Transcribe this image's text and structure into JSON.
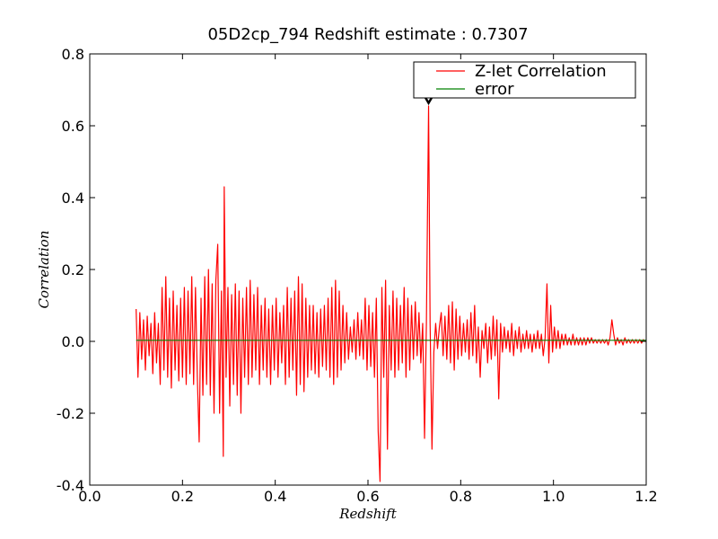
{
  "chart_data": {
    "type": "line",
    "title": "05D2cp_794 Redshift estimate : 0.7307",
    "xlabel": "Redshift",
    "ylabel": "Correlation",
    "xlim": [
      0.0,
      1.2
    ],
    "ylim": [
      -0.4,
      0.8
    ],
    "xticks": [
      "0.0",
      "0.2",
      "0.4",
      "0.6",
      "0.8",
      "1.0",
      "1.2"
    ],
    "yticks": [
      "-0.4",
      "-0.2",
      "0.0",
      "0.2",
      "0.4",
      "0.6",
      "0.8"
    ],
    "legend_position": "top-right",
    "series": [
      {
        "name": "Z-let Correlation",
        "color": "#ff0000",
        "points": [
          [
            0.1,
            0.09
          ],
          [
            0.104,
            -0.1
          ],
          [
            0.108,
            0.08
          ],
          [
            0.112,
            -0.05
          ],
          [
            0.116,
            0.06
          ],
          [
            0.12,
            -0.08
          ],
          [
            0.124,
            0.07
          ],
          [
            0.128,
            -0.04
          ],
          [
            0.132,
            0.05
          ],
          [
            0.136,
            -0.09
          ],
          [
            0.14,
            0.08
          ],
          [
            0.144,
            -0.06
          ],
          [
            0.148,
            0.05
          ],
          [
            0.152,
            -0.12
          ],
          [
            0.156,
            0.15
          ],
          [
            0.16,
            -0.08
          ],
          [
            0.164,
            0.18
          ],
          [
            0.168,
            -0.1
          ],
          [
            0.172,
            0.12
          ],
          [
            0.176,
            -0.13
          ],
          [
            0.18,
            0.14
          ],
          [
            0.184,
            -0.08
          ],
          [
            0.188,
            0.1
          ],
          [
            0.192,
            -0.11
          ],
          [
            0.196,
            0.12
          ],
          [
            0.2,
            -0.1
          ],
          [
            0.204,
            0.15
          ],
          [
            0.208,
            -0.12
          ],
          [
            0.212,
            0.14
          ],
          [
            0.216,
            -0.09
          ],
          [
            0.22,
            0.18
          ],
          [
            0.224,
            -0.12
          ],
          [
            0.228,
            0.15
          ],
          [
            0.232,
            -0.1
          ],
          [
            0.236,
            -0.28
          ],
          [
            0.24,
            0.12
          ],
          [
            0.244,
            -0.15
          ],
          [
            0.248,
            0.18
          ],
          [
            0.252,
            -0.12
          ],
          [
            0.256,
            0.2
          ],
          [
            0.26,
            -0.15
          ],
          [
            0.264,
            0.16
          ],
          [
            0.268,
            -0.2
          ],
          [
            0.272,
            0.17
          ],
          [
            0.276,
            0.27
          ],
          [
            0.28,
            -0.2
          ],
          [
            0.284,
            0.14
          ],
          [
            0.288,
            -0.32
          ],
          [
            0.29,
            0.43
          ],
          [
            0.294,
            -0.1
          ],
          [
            0.298,
            0.15
          ],
          [
            0.302,
            -0.18
          ],
          [
            0.306,
            0.13
          ],
          [
            0.31,
            -0.12
          ],
          [
            0.314,
            0.16
          ],
          [
            0.318,
            -0.15
          ],
          [
            0.322,
            0.14
          ],
          [
            0.326,
            -0.2
          ],
          [
            0.33,
            0.12
          ],
          [
            0.334,
            -0.1
          ],
          [
            0.338,
            0.15
          ],
          [
            0.342,
            -0.12
          ],
          [
            0.346,
            0.17
          ],
          [
            0.35,
            -0.1
          ],
          [
            0.354,
            0.13
          ],
          [
            0.358,
            -0.08
          ],
          [
            0.362,
            0.15
          ],
          [
            0.366,
            -0.12
          ],
          [
            0.37,
            0.1
          ],
          [
            0.374,
            -0.08
          ],
          [
            0.378,
            0.12
          ],
          [
            0.382,
            -0.1
          ],
          [
            0.386,
            0.09
          ],
          [
            0.39,
            -0.12
          ],
          [
            0.394,
            0.1
          ],
          [
            0.398,
            -0.08
          ],
          [
            0.402,
            0.12
          ],
          [
            0.406,
            -0.1
          ],
          [
            0.41,
            0.08
          ],
          [
            0.414,
            -0.06
          ],
          [
            0.418,
            0.1
          ],
          [
            0.422,
            -0.12
          ],
          [
            0.426,
            0.15
          ],
          [
            0.43,
            -0.1
          ],
          [
            0.434,
            0.12
          ],
          [
            0.438,
            -0.08
          ],
          [
            0.442,
            0.14
          ],
          [
            0.446,
            -0.15
          ],
          [
            0.45,
            0.18
          ],
          [
            0.454,
            -0.12
          ],
          [
            0.458,
            0.16
          ],
          [
            0.462,
            -0.14
          ],
          [
            0.466,
            0.12
          ],
          [
            0.47,
            -0.1
          ],
          [
            0.474,
            0.1
          ],
          [
            0.478,
            -0.08
          ],
          [
            0.482,
            0.1
          ],
          [
            0.486,
            -0.09
          ],
          [
            0.49,
            0.08
          ],
          [
            0.494,
            -0.1
          ],
          [
            0.498,
            0.09
          ],
          [
            0.502,
            -0.07
          ],
          [
            0.506,
            0.1
          ],
          [
            0.51,
            -0.08
          ],
          [
            0.514,
            0.12
          ],
          [
            0.518,
            -0.1
          ],
          [
            0.522,
            0.15
          ],
          [
            0.526,
            -0.12
          ],
          [
            0.53,
            0.17
          ],
          [
            0.534,
            -0.1
          ],
          [
            0.538,
            0.14
          ],
          [
            0.542,
            -0.08
          ],
          [
            0.546,
            0.1
          ],
          [
            0.55,
            -0.06
          ],
          [
            0.554,
            0.08
          ],
          [
            0.558,
            -0.05
          ],
          [
            0.562,
            0.04
          ],
          [
            0.566,
            -0.03
          ],
          [
            0.57,
            0.06
          ],
          [
            0.574,
            -0.05
          ],
          [
            0.578,
            0.08
          ],
          [
            0.582,
            -0.04
          ],
          [
            0.586,
            0.06
          ],
          [
            0.59,
            -0.05
          ],
          [
            0.594,
            0.12
          ],
          [
            0.598,
            -0.08
          ],
          [
            0.602,
            0.1
          ],
          [
            0.606,
            -0.07
          ],
          [
            0.61,
            0.08
          ],
          [
            0.614,
            -0.1
          ],
          [
            0.618,
            0.12
          ],
          [
            0.622,
            -0.25
          ],
          [
            0.626,
            -0.39
          ],
          [
            0.63,
            0.15
          ],
          [
            0.634,
            -0.1
          ],
          [
            0.638,
            0.17
          ],
          [
            0.642,
            -0.3
          ],
          [
            0.646,
            0.1
          ],
          [
            0.65,
            -0.08
          ],
          [
            0.654,
            0.14
          ],
          [
            0.658,
            -0.1
          ],
          [
            0.662,
            0.12
          ],
          [
            0.666,
            -0.08
          ],
          [
            0.67,
            0.1
          ],
          [
            0.674,
            -0.06
          ],
          [
            0.678,
            0.15
          ],
          [
            0.682,
            -0.1
          ],
          [
            0.686,
            0.12
          ],
          [
            0.69,
            -0.08
          ],
          [
            0.694,
            0.1
          ],
          [
            0.698,
            -0.05
          ],
          [
            0.702,
            0.11
          ],
          [
            0.706,
            -0.04
          ],
          [
            0.71,
            0.08
          ],
          [
            0.714,
            -0.06
          ],
          [
            0.718,
            0.05
          ],
          [
            0.722,
            -0.27
          ],
          [
            0.726,
            0.05
          ],
          [
            0.7307,
            0.655
          ],
          [
            0.734,
            0.05
          ],
          [
            0.738,
            -0.3
          ],
          [
            0.742,
            -0.03
          ],
          [
            0.746,
            0.05
          ],
          [
            0.75,
            -0.02
          ],
          [
            0.754,
            0.04
          ],
          [
            0.758,
            0.08
          ],
          [
            0.762,
            -0.04
          ],
          [
            0.766,
            0.07
          ],
          [
            0.77,
            -0.05
          ],
          [
            0.774,
            0.1
          ],
          [
            0.778,
            -0.06
          ],
          [
            0.782,
            0.11
          ],
          [
            0.786,
            -0.08
          ],
          [
            0.79,
            0.09
          ],
          [
            0.794,
            -0.05
          ],
          [
            0.798,
            0.07
          ],
          [
            0.802,
            -0.04
          ],
          [
            0.806,
            0.05
          ],
          [
            0.81,
            -0.03
          ],
          [
            0.814,
            0.06
          ],
          [
            0.818,
            -0.05
          ],
          [
            0.822,
            0.08
          ],
          [
            0.826,
            -0.04
          ],
          [
            0.83,
            0.1
          ],
          [
            0.834,
            -0.06
          ],
          [
            0.838,
            0.04
          ],
          [
            0.842,
            -0.1
          ],
          [
            0.846,
            0.03
          ],
          [
            0.85,
            -0.02
          ],
          [
            0.854,
            0.05
          ],
          [
            0.858,
            -0.06
          ],
          [
            0.862,
            0.04
          ],
          [
            0.866,
            -0.05
          ],
          [
            0.87,
            0.07
          ],
          [
            0.874,
            -0.04
          ],
          [
            0.878,
            0.06
          ],
          [
            0.882,
            -0.16
          ],
          [
            0.886,
            0.05
          ],
          [
            0.89,
            -0.03
          ],
          [
            0.894,
            0.04
          ],
          [
            0.898,
            -0.02
          ],
          [
            0.902,
            0.03
          ],
          [
            0.906,
            -0.03
          ],
          [
            0.91,
            0.05
          ],
          [
            0.914,
            -0.04
          ],
          [
            0.918,
            0.03
          ],
          [
            0.922,
            -0.02
          ],
          [
            0.926,
            0.04
          ],
          [
            0.93,
            -0.03
          ],
          [
            0.934,
            0.02
          ],
          [
            0.938,
            -0.02
          ],
          [
            0.942,
            0.03
          ],
          [
            0.946,
            -0.02
          ],
          [
            0.95,
            0.02
          ],
          [
            0.954,
            -0.03
          ],
          [
            0.958,
            0.02
          ],
          [
            0.962,
            -0.02
          ],
          [
            0.966,
            0.03
          ],
          [
            0.97,
            -0.02
          ],
          [
            0.974,
            0.02
          ],
          [
            0.978,
            -0.04
          ],
          [
            0.982,
            0.01
          ],
          [
            0.986,
            0.16
          ],
          [
            0.99,
            -0.06
          ],
          [
            0.994,
            0.1
          ],
          [
            0.998,
            -0.03
          ],
          [
            1.002,
            0.04
          ],
          [
            1.006,
            -0.02
          ],
          [
            1.01,
            0.03
          ],
          [
            1.014,
            -0.02
          ],
          [
            1.018,
            0.02
          ],
          [
            1.022,
            -0.01
          ],
          [
            1.026,
            0.02
          ],
          [
            1.03,
            -0.01
          ],
          [
            1.034,
            0.01
          ],
          [
            1.038,
            -0.01
          ],
          [
            1.042,
            0.02
          ],
          [
            1.046,
            -0.01
          ],
          [
            1.05,
            0.01
          ],
          [
            1.054,
            -0.01
          ],
          [
            1.058,
            0.01
          ],
          [
            1.062,
            -0.01
          ],
          [
            1.066,
            0.01
          ],
          [
            1.07,
            -0.01
          ],
          [
            1.074,
            0.01
          ],
          [
            1.078,
            -0.005
          ],
          [
            1.082,
            0.01
          ],
          [
            1.086,
            -0.005
          ],
          [
            1.09,
            0.005
          ],
          [
            1.094,
            -0.005
          ],
          [
            1.098,
            0.005
          ],
          [
            1.102,
            -0.005
          ],
          [
            1.106,
            0.005
          ],
          [
            1.11,
            -0.005
          ],
          [
            1.114,
            0.005
          ],
          [
            1.118,
            -0.01
          ],
          [
            1.122,
            0.01
          ],
          [
            1.126,
            0.06
          ],
          [
            1.13,
            0.02
          ],
          [
            1.134,
            -0.01
          ],
          [
            1.138,
            0.01
          ],
          [
            1.142,
            -0.005
          ],
          [
            1.146,
            0.005
          ],
          [
            1.15,
            -0.01
          ],
          [
            1.154,
            0.01
          ],
          [
            1.158,
            -0.005
          ],
          [
            1.162,
            0.005
          ],
          [
            1.166,
            -0.005
          ],
          [
            1.17,
            0.005
          ],
          [
            1.174,
            -0.005
          ],
          [
            1.178,
            0.005
          ],
          [
            1.182,
            -0.005
          ],
          [
            1.186,
            0.005
          ],
          [
            1.19,
            -0.005
          ],
          [
            1.194,
            0.005
          ],
          [
            1.198,
            0.0
          ],
          [
            1.2,
            0.0
          ]
        ]
      },
      {
        "name": "error",
        "color": "#008000",
        "points": [
          [
            0.1,
            0.003
          ],
          [
            1.2,
            0.003
          ]
        ]
      }
    ],
    "annotations": [
      {
        "type": "marker",
        "shape": "down-triangle",
        "x": 0.7307,
        "y": 0.655
      }
    ]
  }
}
